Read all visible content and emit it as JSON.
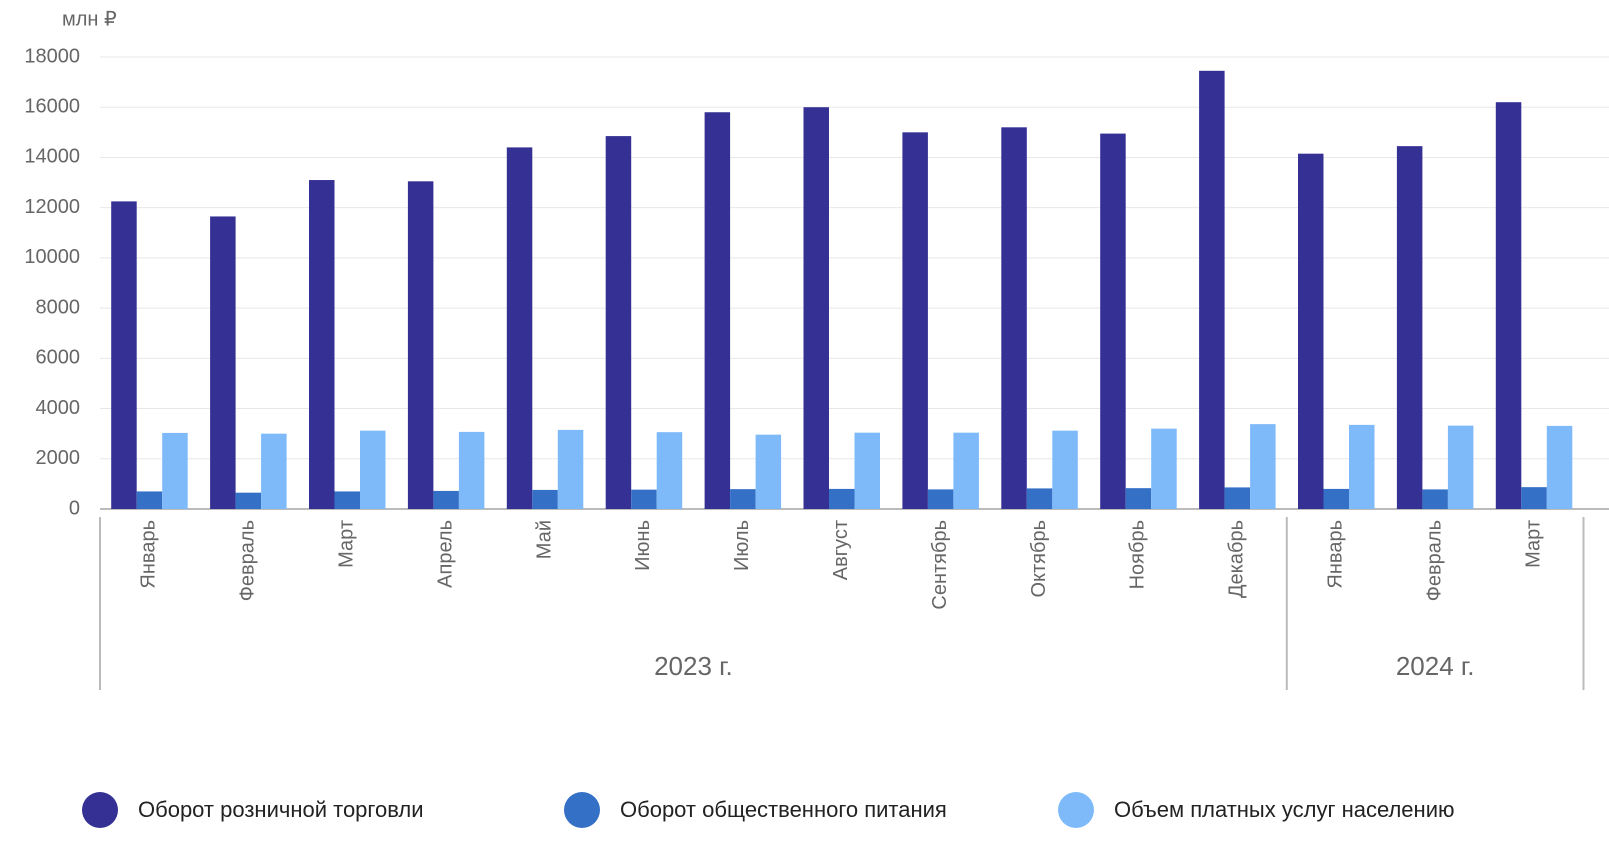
{
  "chart_data": {
    "type": "bar",
    "y_axis_label": "млн ₽",
    "groups": [
      {
        "name": "2023 г.",
        "categories": [
          "Январь",
          "Февраль",
          "Март",
          "Апрель",
          "Май",
          "Июнь",
          "Июль",
          "Август",
          "Сентябрь",
          "Октябрь",
          "Ноябрь",
          "Декабрь"
        ]
      },
      {
        "name": "2024 г.",
        "categories": [
          "Январь",
          "Февраль",
          "Март"
        ]
      }
    ],
    "series": [
      {
        "name": "Оборот розничной торговли",
        "color": "#353093",
        "values": [
          12250,
          11650,
          13100,
          13050,
          14400,
          14850,
          15800,
          16000,
          15000,
          15200,
          14950,
          17450,
          14150,
          14450,
          16200
        ]
      },
      {
        "name": "Оборот общественного питания",
        "color": "#3470c6",
        "values": [
          700,
          650,
          700,
          720,
          760,
          770,
          790,
          800,
          780,
          820,
          830,
          860,
          800,
          780,
          870
        ]
      },
      {
        "name": "Объем платных услуг населению",
        "color": "#7ebaf9",
        "values": [
          3030,
          3000,
          3120,
          3070,
          3150,
          3060,
          2960,
          3040,
          3040,
          3120,
          3200,
          3380,
          3350,
          3320,
          3310
        ]
      }
    ],
    "ylim": [
      0,
      18000
    ],
    "yticks": [
      0,
      2000,
      4000,
      6000,
      8000,
      10000,
      12000,
      14000,
      16000,
      18000
    ],
    "grid": true,
    "legend": "bottom"
  }
}
